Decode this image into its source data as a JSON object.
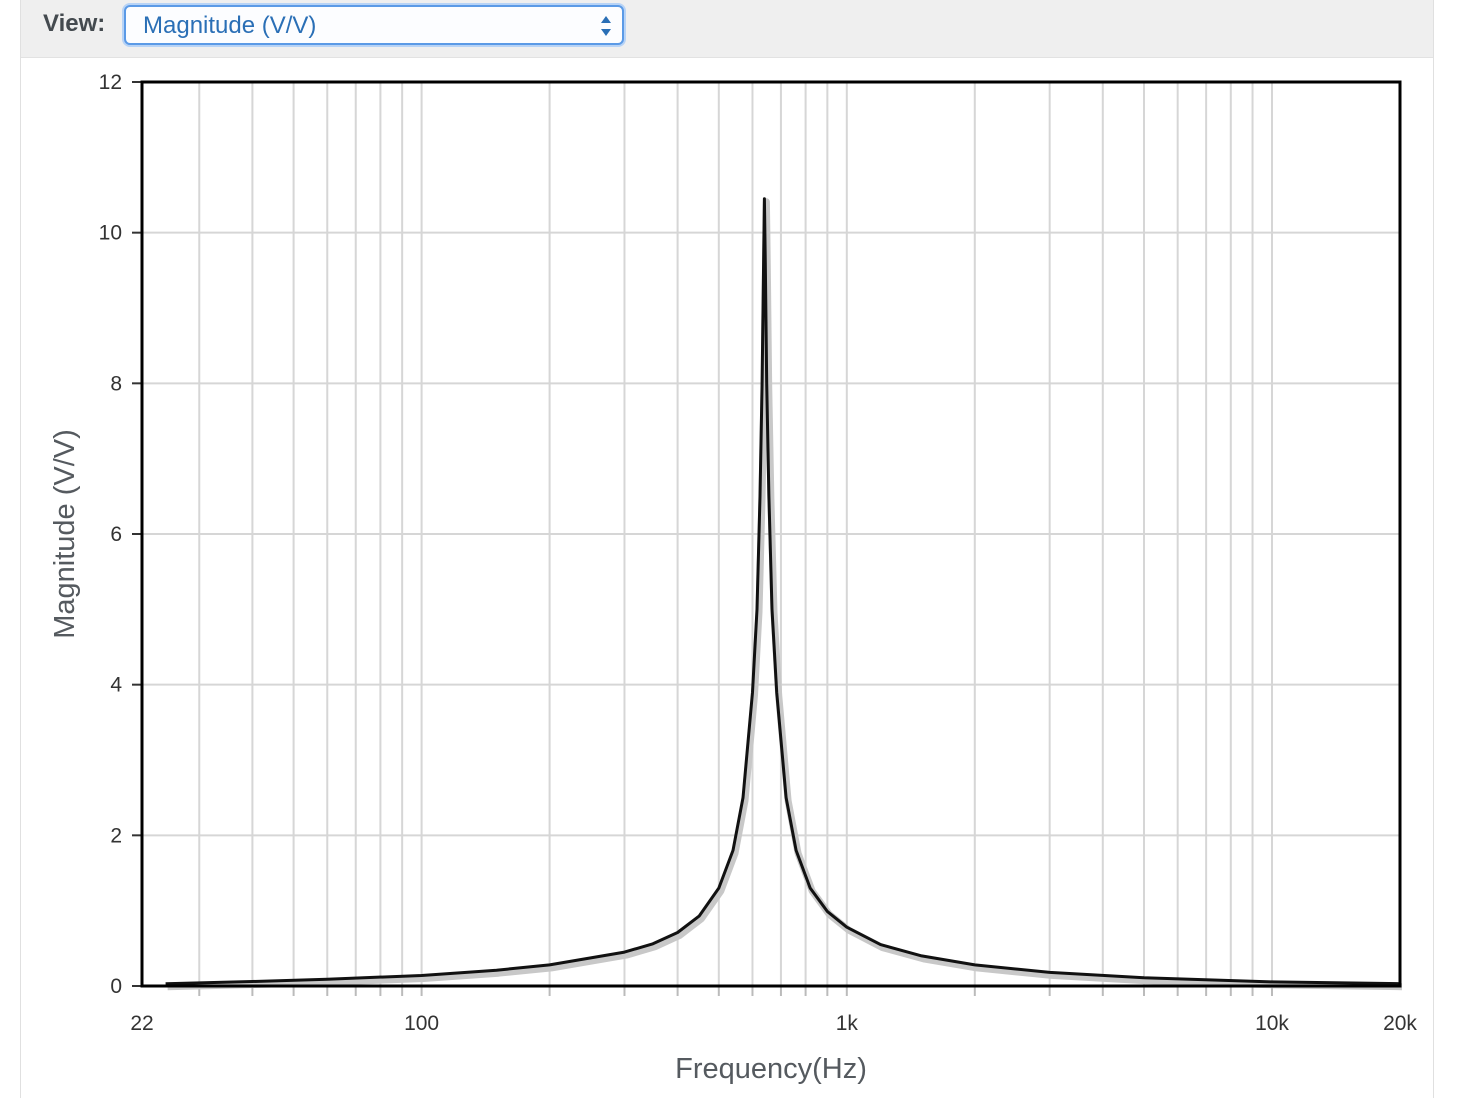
{
  "toolbar": {
    "view_label": "View:",
    "view_select_value": "Magnitude (V/V)"
  },
  "chart_data": {
    "type": "line",
    "title": "",
    "xlabel": "Frequency(Hz)",
    "ylabel": "Magnitude (V/V)",
    "x_scale": "log",
    "xlim": [
      22,
      20000
    ],
    "ylim": [
      0,
      12
    ],
    "grid": true,
    "x_ticks": [
      {
        "value": 22,
        "label": "22"
      },
      {
        "value": 100,
        "label": "100"
      },
      {
        "value": 1000,
        "label": "1k"
      },
      {
        "value": 10000,
        "label": "10k"
      },
      {
        "value": 20000,
        "label": "20k"
      }
    ],
    "y_ticks": [
      {
        "value": 0,
        "label": "0"
      },
      {
        "value": 2,
        "label": "2"
      },
      {
        "value": 4,
        "label": "4"
      },
      {
        "value": 6,
        "label": "6"
      },
      {
        "value": 8,
        "label": "8"
      },
      {
        "value": 10,
        "label": "10"
      },
      {
        "value": 12,
        "label": "12"
      }
    ],
    "series": [
      {
        "color": "#111111",
        "points": [
          [
            25,
            0.03
          ],
          [
            40,
            0.06
          ],
          [
            60,
            0.09
          ],
          [
            100,
            0.14
          ],
          [
            150,
            0.21
          ],
          [
            200,
            0.28
          ],
          [
            300,
            0.45
          ],
          [
            350,
            0.56
          ],
          [
            400,
            0.71
          ],
          [
            450,
            0.93
          ],
          [
            500,
            1.3
          ],
          [
            540,
            1.8
          ],
          [
            570,
            2.5
          ],
          [
            600,
            3.9
          ],
          [
            615,
            5.0
          ],
          [
            625,
            6.5
          ],
          [
            632,
            8.0
          ],
          [
            637,
            9.5
          ],
          [
            640,
            10.45
          ],
          [
            643,
            9.6
          ],
          [
            648,
            8.0
          ],
          [
            656,
            6.5
          ],
          [
            667,
            5.0
          ],
          [
            684,
            3.9
          ],
          [
            720,
            2.5
          ],
          [
            760,
            1.8
          ],
          [
            820,
            1.3
          ],
          [
            900,
            0.99
          ],
          [
            1000,
            0.78
          ],
          [
            1200,
            0.55
          ],
          [
            1500,
            0.4
          ],
          [
            2000,
            0.28
          ],
          [
            3000,
            0.18
          ],
          [
            5000,
            0.11
          ],
          [
            10000,
            0.055
          ],
          [
            20000,
            0.03
          ]
        ]
      }
    ]
  }
}
